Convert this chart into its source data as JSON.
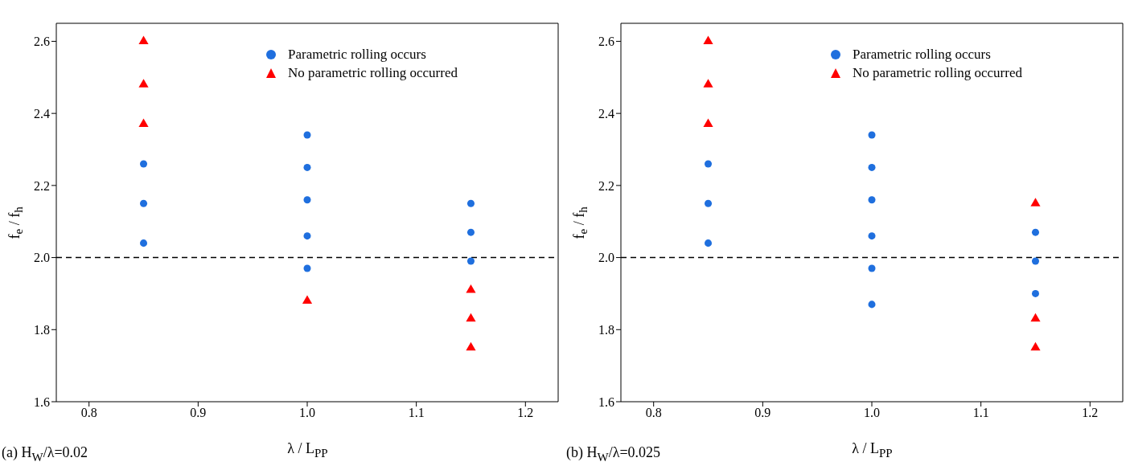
{
  "chart_data": [
    {
      "type": "scatter",
      "xlabel": "λ / L$_{PP}$",
      "ylabel": "f$_{e}$ / f$_{h}$",
      "annotations": [
        "(a) H$_{W}$/λ=0.02"
      ],
      "xlim": [
        0.77,
        1.23
      ],
      "xticks": [
        0.8,
        0.9,
        {
          "value": 1,
          "label": "1.0"
        },
        1.1,
        1.2
      ],
      "ylim": [
        1.6,
        2.65
      ],
      "yticks": [
        1.6,
        1.8,
        {
          "value": 2,
          "label": "2.0"
        },
        2.2,
        2.4,
        2.6
      ],
      "grid": false,
      "legend": "top right",
      "ref_lines": [
        {
          "axis": "y",
          "value": 2.0,
          "color": "#000000",
          "line_style": "dashed"
        }
      ],
      "series": [
        {
          "name": "Parametric rolling occurs",
          "color": "#1f6fde",
          "marker": "circle",
          "x": [
            0.85,
            0.85,
            0.85,
            1.0,
            1.0,
            1.0,
            1.0,
            1.0,
            1.15,
            1.15,
            1.15
          ],
          "values": [
            2.26,
            2.15,
            2.04,
            2.34,
            2.25,
            2.16,
            2.06,
            1.97,
            2.15,
            2.07,
            1.99
          ]
        },
        {
          "name": "No parametric rolling occurred",
          "color": "#ff0000",
          "marker": "triangle",
          "x": [
            0.85,
            0.85,
            0.85,
            1.0,
            1.15,
            1.15,
            1.15
          ],
          "values": [
            2.6,
            2.48,
            2.37,
            1.88,
            1.91,
            1.83,
            1.75
          ]
        }
      ]
    },
    {
      "type": "scatter",
      "xlabel": "λ / L$_{PP}$",
      "ylabel": "f$_{e}$ / f$_{h}$",
      "annotations": [
        "(b) H$_{W}$/λ=0.025"
      ],
      "xlim": [
        0.77,
        1.23
      ],
      "xticks": [
        0.8,
        0.9,
        {
          "value": 1,
          "label": "1.0"
        },
        1.1,
        1.2
      ],
      "ylim": [
        1.6,
        2.65
      ],
      "yticks": [
        1.6,
        1.8,
        {
          "value": 2,
          "label": "2.0"
        },
        2.2,
        2.4,
        2.6
      ],
      "grid": false,
      "legend": "top right",
      "ref_lines": [
        {
          "axis": "y",
          "value": 2.0,
          "color": "#000000",
          "line_style": "dashed"
        }
      ],
      "series": [
        {
          "name": "Parametric rolling occurs",
          "color": "#1f6fde",
          "marker": "circle",
          "x": [
            0.85,
            0.85,
            0.85,
            1.0,
            1.0,
            1.0,
            1.0,
            1.0,
            1.0,
            1.15,
            1.15,
            1.15
          ],
          "values": [
            2.26,
            2.15,
            2.04,
            2.34,
            2.25,
            2.16,
            2.06,
            1.97,
            1.87,
            2.07,
            1.99,
            1.9
          ]
        },
        {
          "name": "No parametric rolling occurred",
          "color": "#ff0000",
          "marker": "triangle",
          "x": [
            0.85,
            0.85,
            0.85,
            1.15,
            1.15,
            1.15
          ],
          "values": [
            2.6,
            2.48,
            2.37,
            2.15,
            1.83,
            1.75
          ]
        }
      ]
    }
  ]
}
